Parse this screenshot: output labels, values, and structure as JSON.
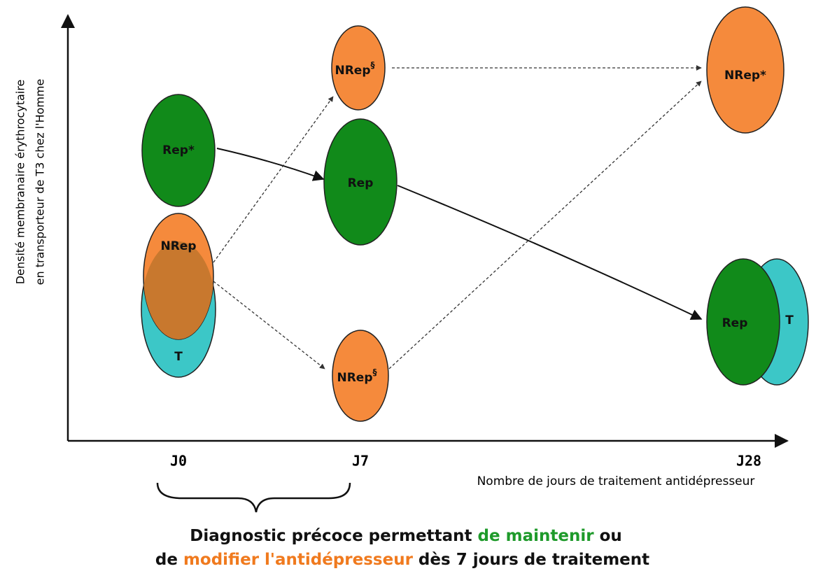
{
  "y_axis": {
    "label_lines": [
      "Densité membranaire érythrocytaire",
      "en transporteur de T3 chez l'Homme"
    ]
  },
  "x_axis": {
    "ticks": [
      "J0",
      "J7",
      "J28"
    ],
    "title": "Nombre de jours de traitement antidépresseur"
  },
  "nodes": [
    {
      "label": "Rep*"
    },
    {
      "label": "NRep"
    },
    {
      "label": "T"
    },
    {
      "label": "NRep",
      "sup": "§"
    },
    {
      "label": "Rep"
    },
    {
      "label": "NRep",
      "sup": "§"
    },
    {
      "label": "NRep*"
    },
    {
      "label": "Rep"
    },
    {
      "label": "T"
    }
  ],
  "caption": {
    "line1": [
      "Diagnostic précoce permettant ",
      "de maintenir",
      " ou"
    ],
    "line2": [
      "de ",
      "modifier l'antidépresseur",
      " dès 7 jours de traitement"
    ]
  }
}
